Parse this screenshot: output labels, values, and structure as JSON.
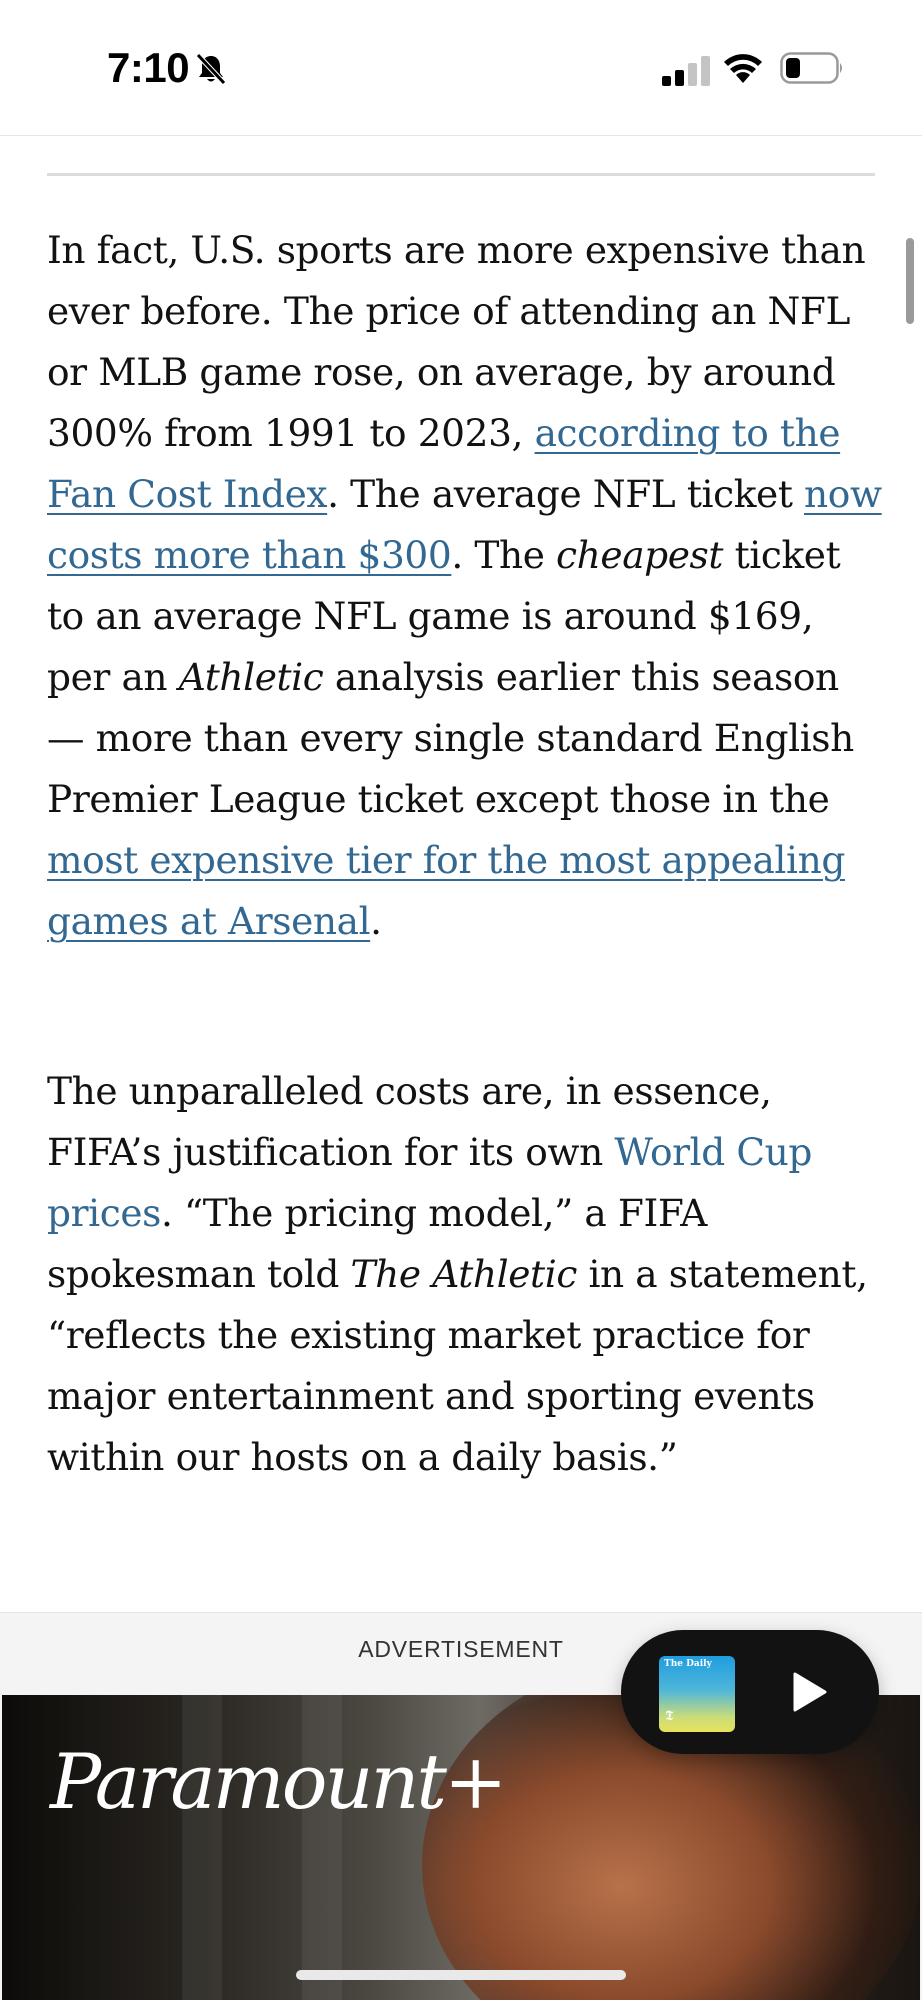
{
  "status_bar": {
    "time": "7:10"
  },
  "article": {
    "p1": [
      "In fact, U.S. sports are more expensive than ever before. The price of attending an NFL or MLB game rose, on average, by around 300% from 1991 to 2023, ",
      "according to the Fan Cost Index",
      ". The average NFL ticket ",
      "now costs more than $300",
      ". The ",
      "cheapest",
      " ticket to an average NFL game is around $169, per an ",
      "Athletic",
      " analysis earlier this season — more than every single standard English Premier League ticket except those in the ",
      "most expensive tier for the most appealing games at Arsenal",
      "."
    ],
    "p2": [
      "The unparalleled costs are, in essence, FIFA’s justification for its own ",
      "World Cup prices",
      ". “The pricing model,” a FIFA spokesman told ",
      "The Athletic",
      " in a statement, “reflects the existing market practice for major entertainment and sporting events within our hosts on a daily basis.”"
    ]
  },
  "ad": {
    "label": "ADVERTISEMENT",
    "brand": "Paramount+"
  },
  "player": {
    "podcast_title": "The Daily",
    "podcast_logo_text": "𝕿"
  },
  "colors": {
    "link": "#326891",
    "text": "#121212",
    "player_bg": "#121212"
  }
}
